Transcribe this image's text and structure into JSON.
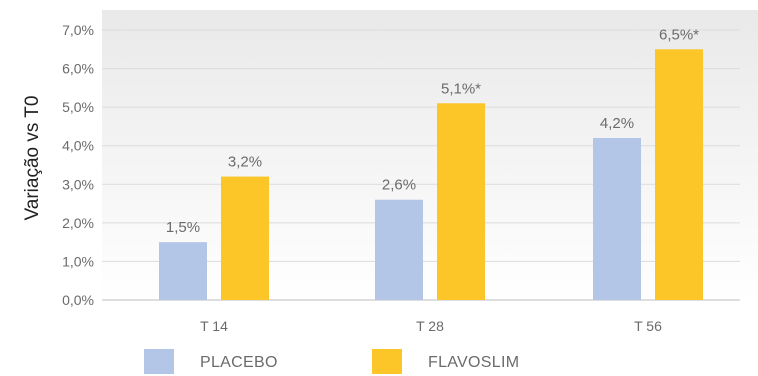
{
  "chart_data": {
    "type": "bar",
    "ylabel": "Variação vs T0",
    "xlabel": "",
    "ylim": [
      0,
      7
    ],
    "grid": true,
    "legend_position": "bottom",
    "y_ticks": [
      "0,0%",
      "1,0%",
      "2,0%",
      "3,0%",
      "4,0%",
      "5,0%",
      "6,0%",
      "7,0%"
    ],
    "categories": [
      "T 14",
      "T 28",
      "T 56"
    ],
    "series": [
      {
        "name": "PLACEBO",
        "color": "#b4c6e7",
        "values": [
          1.5,
          2.6,
          4.2
        ],
        "labels": [
          "1,5%",
          "2,6%",
          "4,2%"
        ]
      },
      {
        "name": "FLAVOSLIM",
        "color": "#fcc528",
        "values": [
          3.2,
          5.1,
          6.5
        ],
        "labels": [
          "3,2%",
          "5,1%*",
          "6,5%*"
        ]
      }
    ]
  }
}
